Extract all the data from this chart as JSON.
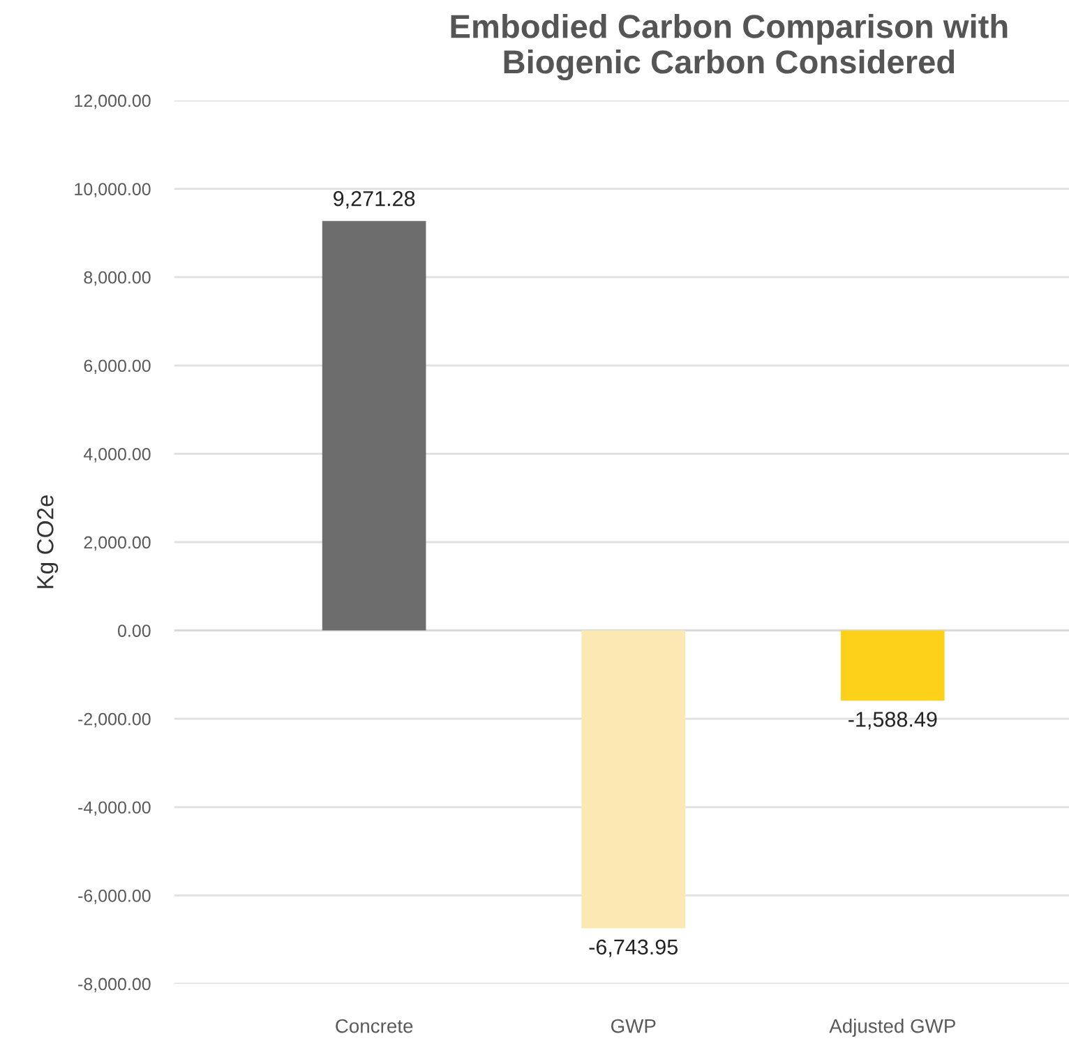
{
  "chart_data": {
    "type": "bar",
    "title": "Embodied Carbon Comparison with\nBiogenic Carbon Considered",
    "ylabel": "Kg CO2e",
    "categories": [
      "Concrete",
      "GWP",
      "Adjusted GWP"
    ],
    "values": [
      9271.28,
      -6743.95,
      -1588.49
    ],
    "colors": [
      "#6d6d6d",
      "#fce8b2",
      "#fdd01a"
    ],
    "value_labels": [
      "9,271.28",
      "-6,743.95",
      "-1,588.49"
    ],
    "ylim": [
      -8000,
      12000
    ],
    "yticks": [
      {
        "value": -8000,
        "label": "-8,000.00"
      },
      {
        "value": -6000,
        "label": "-6,000.00"
      },
      {
        "value": -4000,
        "label": "-4,000.00"
      },
      {
        "value": -2000,
        "label": "-2,000.00"
      },
      {
        "value": 0,
        "label": "0.00"
      },
      {
        "value": 2000,
        "label": "2,000.00"
      },
      {
        "value": 4000,
        "label": "4,000.00"
      },
      {
        "value": 6000,
        "label": "6,000.00"
      },
      {
        "value": 8000,
        "label": "8,000.00"
      },
      {
        "value": 10000,
        "label": "10,000.00"
      },
      {
        "value": 12000,
        "label": "12,000.00"
      }
    ],
    "grid": "y",
    "legend": false
  }
}
